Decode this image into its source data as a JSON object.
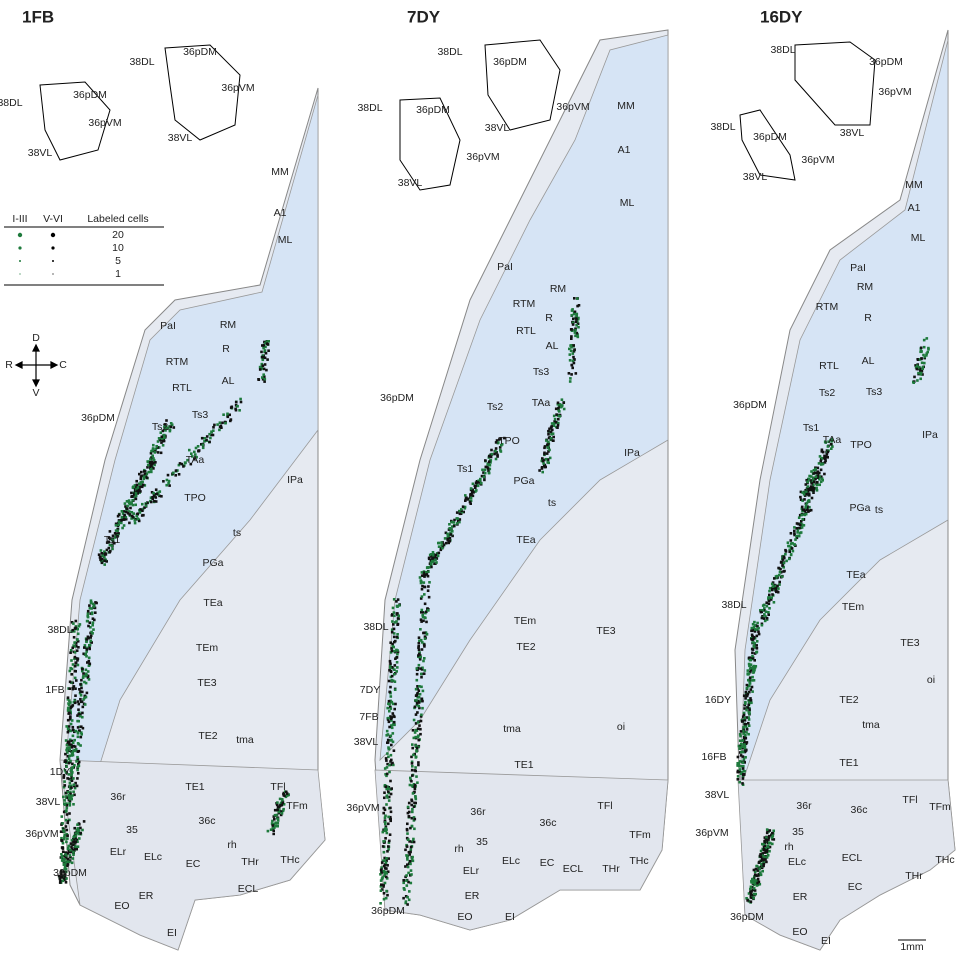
{
  "panels": [
    {
      "title": "1FB",
      "labels": [
        "38DL",
        "36pDM",
        "36pVM",
        "38VL",
        "38DL",
        "36pDM",
        "36pVM",
        "38VL",
        "MM",
        "A1",
        "ML",
        "PaI",
        "RM",
        "RTM",
        "R",
        "RTL",
        "AL",
        "36pDM",
        "Ts3",
        "Ts2",
        "TAa",
        "TPO",
        "IPa",
        "ts",
        "Ts1",
        "PGa",
        "TEa",
        "38DL",
        "TEm",
        "1FB",
        "TE3",
        "TE2",
        "tma",
        "1DY",
        "TE1",
        "TFl",
        "38VL",
        "36r",
        "36c",
        "TFm",
        "35",
        "rh",
        "36pVM",
        "ELr",
        "ELc",
        "EC",
        "THr",
        "THc",
        "ECL",
        "ER",
        "EO",
        "36pDM",
        "EI"
      ]
    },
    {
      "title": "7DY",
      "labels": [
        "38DL",
        "36pDM",
        "36pVM",
        "38VL",
        "38DL",
        "36pDM",
        "36pVM",
        "38VL",
        "MM",
        "A1",
        "ML",
        "PaI",
        "RM",
        "RTM",
        "R",
        "RTL",
        "AL",
        "Ts3",
        "36pDM",
        "Ts2",
        "TAa",
        "TPO",
        "IPa",
        "Ts1",
        "PGa",
        "ts",
        "TEa",
        "38DL",
        "TEm",
        "TE3",
        "TE2",
        "7DY",
        "7FB",
        "tma",
        "oi",
        "38VL",
        "TE1",
        "36pVM",
        "36r",
        "TFl",
        "36c",
        "TFm",
        "rh",
        "35",
        "ELr",
        "ELc",
        "EC",
        "ECL",
        "THr",
        "THc",
        "ER",
        "36pDM",
        "EO",
        "EI"
      ]
    },
    {
      "title": "16DY",
      "labels": [
        "38DL",
        "36pDM",
        "36pVM",
        "38VL",
        "38DL",
        "36pDM",
        "36pVM",
        "38VL",
        "MM",
        "A1",
        "ML",
        "PaI",
        "RM",
        "RTM",
        "R",
        "RTL",
        "AL",
        "Ts3",
        "Ts2",
        "36pDM",
        "Ts1",
        "TAa",
        "TPO",
        "IPa",
        "PGa",
        "ts",
        "TEa",
        "38DL",
        "TEm",
        "TE3",
        "oi",
        "16DY",
        "TE2",
        "tma",
        "16FB",
        "TE1",
        "38VL",
        "TFl",
        "36r",
        "36c",
        "TFm",
        "36pVM",
        "35",
        "rh",
        "ELc",
        "ECL",
        "THc",
        "EC",
        "THr",
        "ER",
        "36pDM",
        "EO",
        "EI"
      ]
    }
  ],
  "legend": {
    "headers": [
      "I-III",
      "V-VI",
      "Labeled cells"
    ],
    "rows": [
      20,
      10,
      5,
      1
    ]
  },
  "compass": [
    "D",
    "V",
    "R",
    "C"
  ],
  "scale": "1mm"
}
